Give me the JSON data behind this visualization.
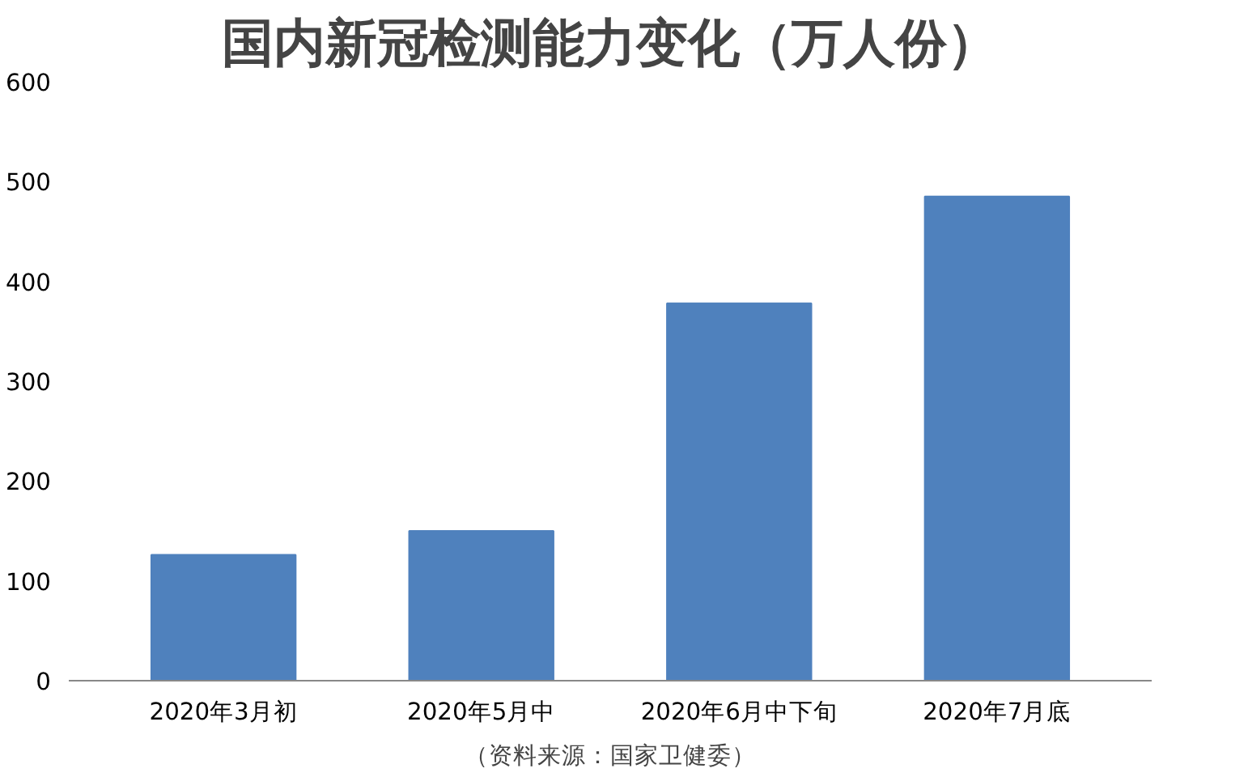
{
  "chart_data": {
    "type": "bar",
    "title": "国内新冠检测能力变化（万人份）",
    "categories": [
      "2020年3月初",
      "2020年5月中",
      "2020年6月中下旬",
      "2020年7月底"
    ],
    "values": [
      126,
      150,
      378,
      485
    ],
    "color": "#4f81bd",
    "ylim": [
      0,
      600
    ],
    "yticks": [
      0,
      100,
      200,
      300,
      400,
      500,
      600
    ],
    "grid": false,
    "annotations": [
      "（资料来源：国家卫健委）"
    ]
  }
}
